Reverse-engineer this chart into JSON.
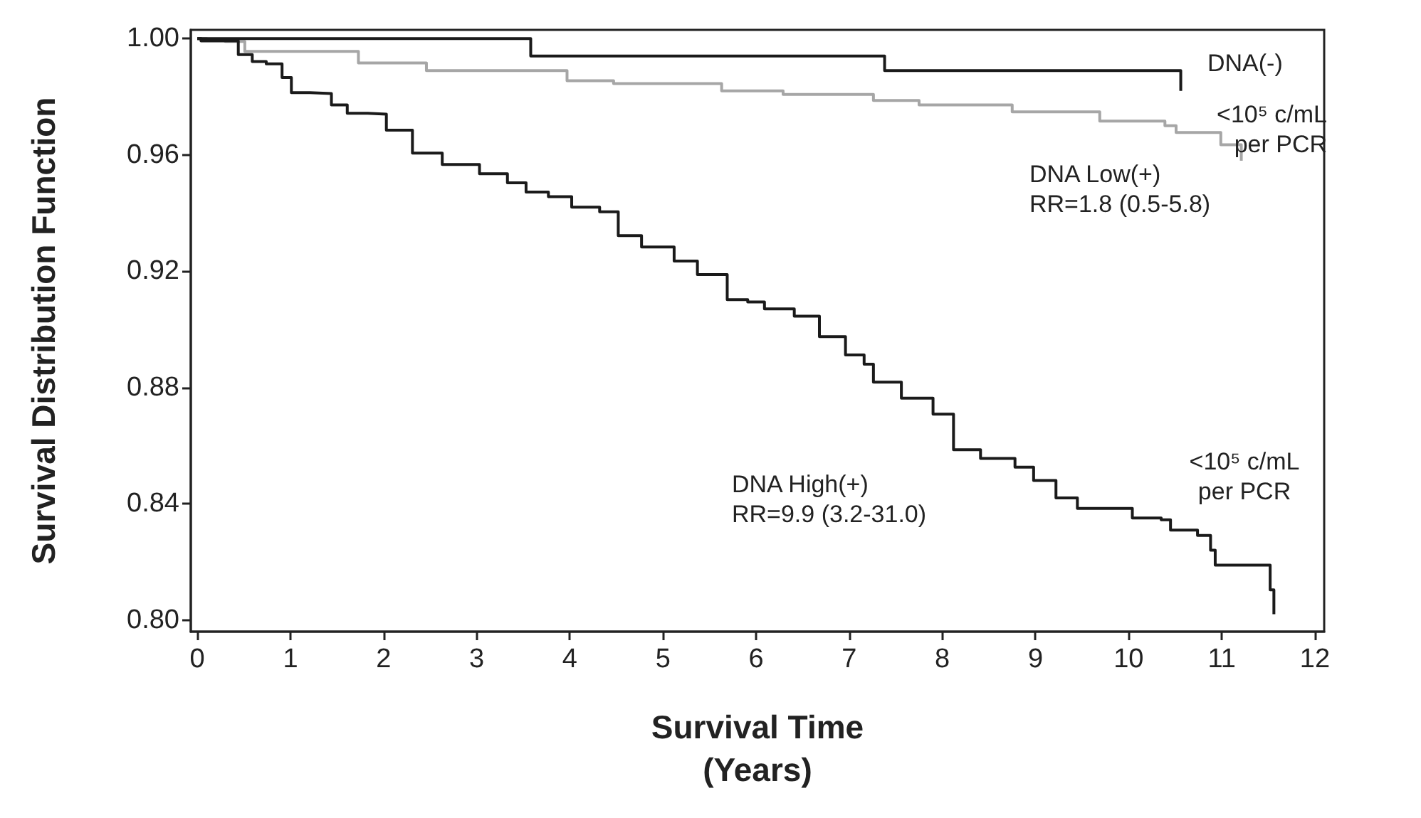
{
  "chart_data": {
    "type": "step",
    "xlabel": "Survival Time\n(Years)",
    "ylabel": "Survival Distribution Function",
    "xlim": [
      -0.07,
      12.1
    ],
    "xticks": [
      0,
      1,
      2,
      3,
      4,
      5,
      6,
      7,
      8,
      9,
      10,
      11,
      12
    ],
    "ylim": [
      0.796,
      1.003
    ],
    "yticks": [
      {
        "value": 0.8,
        "label": "0.80"
      },
      {
        "value": 0.84,
        "label": "0.84"
      },
      {
        "value": 0.88,
        "label": "0.88"
      },
      {
        "value": 0.92,
        "label": "0.92"
      },
      {
        "value": 0.96,
        "label": "0.96"
      },
      {
        "value": 1.0,
        "label": "1.00"
      }
    ],
    "grid": false,
    "marker": "none",
    "line_style": "solid",
    "series": [
      {
        "color": "#1a1a1a",
        "x": [
          0,
          3.58,
          7.38,
          10.56
        ],
        "values": [
          1.0,
          0.994,
          0.989,
          0.982
        ]
      },
      {
        "color": "#a6a6a6",
        "x": [
          0,
          0.1,
          0.3,
          0.51,
          1.73,
          2.46,
          3.97,
          4.47,
          5.63,
          6.29,
          7.26,
          7.75,
          8.75,
          9.69,
          10.39,
          10.51,
          10.99,
          11.21
        ],
        "values": [
          1.0,
          0.9995,
          0.999,
          0.9956,
          0.9916,
          0.989,
          0.9855,
          0.9845,
          0.982,
          0.9808,
          0.9787,
          0.9772,
          0.9748,
          0.9716,
          0.97,
          0.9677,
          0.9635,
          0.958
        ]
      },
      {
        "color": "#1a1a1a",
        "x": [
          0,
          0.04,
          0.44,
          0.59,
          0.74,
          0.91,
          1.01,
          1.21,
          1.44,
          1.61,
          1.83,
          2.03,
          2.31,
          2.63,
          3.03,
          3.33,
          3.53,
          3.77,
          4.02,
          4.32,
          4.52,
          4.77,
          5.12,
          5.37,
          5.69,
          5.91,
          6.09,
          6.41,
          6.68,
          6.96,
          7.16,
          7.26,
          7.56,
          7.9,
          8.12,
          8.41,
          8.78,
          8.98,
          9.22,
          9.45,
          10.04,
          10.35,
          10.45,
          10.74,
          10.88,
          10.93,
          11.52,
          11.56
        ],
        "values": [
          1.0,
          0.9992,
          0.9945,
          0.9921,
          0.9913,
          0.9866,
          0.9814,
          0.9811,
          0.9772,
          0.9743,
          0.974,
          0.9685,
          0.9606,
          0.9567,
          0.9535,
          0.9504,
          0.9472,
          0.9456,
          0.942,
          0.9404,
          0.9322,
          0.9283,
          0.9235,
          0.9188,
          0.9102,
          0.9094,
          0.907,
          0.9045,
          0.8975,
          0.8912,
          0.888,
          0.8818,
          0.8763,
          0.8708,
          0.8586,
          0.8556,
          0.8526,
          0.848,
          0.842,
          0.8384,
          0.8351,
          0.8345,
          0.8309,
          0.8291,
          0.824,
          0.8189,
          0.8104,
          0.802
        ]
      }
    ],
    "annotations": [
      "DNA(-)",
      "<10⁵ c/mL\nper PCR",
      "DNA Low(+)\nRR=1.8 (0.5-5.8)",
      "DNA High(+)\nRR=9.9 (3.2-31.0)",
      "<10⁵ c/mL\nper PCR"
    ]
  }
}
